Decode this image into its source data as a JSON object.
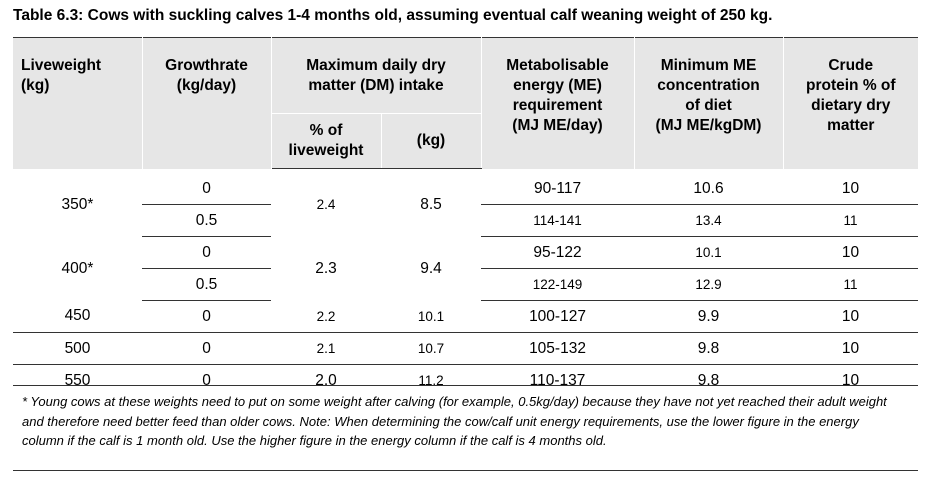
{
  "title": "Table 6.3: Cows with suckling calves 1-4 months old, assuming eventual calf weaning weight of 250 kg.",
  "headers": {
    "liveweight": [
      "Liveweight",
      "(kg)"
    ],
    "growth": [
      "Growthrate",
      "(kg/day)"
    ],
    "dm_group": [
      "Maximum daily dry",
      "matter (DM) intake"
    ],
    "dm_pct": [
      "% of",
      "liveweight"
    ],
    "dm_kg": "(kg)",
    "me_req": [
      "Metabolisable",
      "energy (ME)",
      "requirement",
      "(MJ ME/day)"
    ],
    "me_conc": [
      "Minimum ME",
      "concentration",
      "of diet",
      "(MJ ME/kgDM)"
    ],
    "protein": [
      "Crude",
      "protein % of",
      "dietary dry",
      "matter"
    ]
  },
  "rows": [
    {
      "liveweight": "350*",
      "pct": "2.4",
      "kg": "8.5",
      "sub": [
        {
          "growth": "0",
          "energy": "90-117",
          "conc": "10.6",
          "protein": "10"
        },
        {
          "growth": "0.5",
          "energy": "114-141",
          "conc": "13.4",
          "protein": "11"
        }
      ]
    },
    {
      "liveweight": "400*",
      "pct": "2.3",
      "kg": "9.4",
      "sub": [
        {
          "growth": "0",
          "energy": "95-122",
          "conc": "10.1",
          "protein": "10"
        },
        {
          "growth": "0.5",
          "energy": "122-149",
          "conc": "12.9",
          "protein": "11"
        }
      ]
    },
    {
      "liveweight": "450",
      "growth": "0",
      "pct": "2.2",
      "kg": "10.1",
      "energy": "100-127",
      "conc": "9.9",
      "protein": "10"
    },
    {
      "liveweight": "500",
      "growth": "0",
      "pct": "2.1",
      "kg": "10.7",
      "energy": "105-132",
      "conc": "9.8",
      "protein": "10"
    },
    {
      "liveweight": "550",
      "growth": "0",
      "pct": "2.0",
      "kg": "11.2",
      "energy": "110-137",
      "conc": "9.8",
      "protein": "10"
    }
  ],
  "footnote": "* Young cows at these weights need to put on some weight after calving (for example, 0.5kg/day) because they have not yet reached their adult weight and therefore need better feed than older cows. Note: When determining the cow/calf unit energy requirements, use the lower figure in the energy column if the calf is 1 month old. Use the higher figure in the energy column if the calf is 4 months old."
}
